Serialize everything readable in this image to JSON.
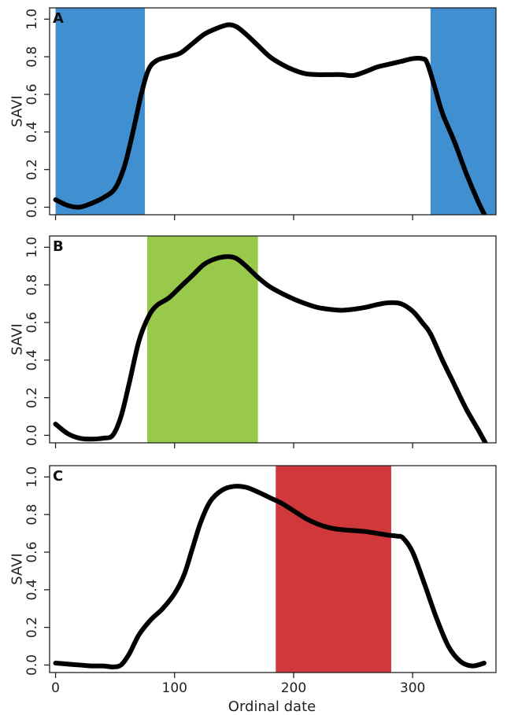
{
  "chart_data": [
    {
      "type": "line",
      "panel_label": "A",
      "ylabel": "SAVI",
      "xlim": [
        -5,
        370
      ],
      "ylim": [
        -0.04,
        1.06
      ],
      "yticks": [
        "0.0",
        "0.2",
        "0.4",
        "0.6",
        "0.8",
        "1.0"
      ],
      "shaded_ranges": [
        {
          "start": 0,
          "end": 75,
          "color": "#3f8fd1"
        },
        {
          "start": 315,
          "end": 370,
          "color": "#3f8fd1"
        }
      ],
      "series": [
        {
          "color": "#000000",
          "x": [
            0,
            10,
            20,
            30,
            40,
            50,
            58,
            65,
            72,
            78,
            85,
            95,
            105,
            115,
            125,
            135,
            145,
            152,
            160,
            170,
            180,
            190,
            200,
            210,
            220,
            230,
            240,
            250,
            260,
            270,
            280,
            290,
            300,
            308,
            312,
            318,
            325,
            335,
            345,
            355,
            362
          ],
          "y": [
            0.04,
            0.01,
            0.0,
            0.02,
            0.05,
            0.1,
            0.22,
            0.4,
            0.6,
            0.73,
            0.78,
            0.8,
            0.82,
            0.87,
            0.92,
            0.95,
            0.97,
            0.96,
            0.92,
            0.86,
            0.8,
            0.76,
            0.73,
            0.71,
            0.705,
            0.705,
            0.705,
            0.7,
            0.72,
            0.745,
            0.76,
            0.775,
            0.79,
            0.79,
            0.77,
            0.65,
            0.5,
            0.35,
            0.18,
            0.03,
            -0.06
          ]
        }
      ]
    },
    {
      "type": "line",
      "panel_label": "B",
      "ylabel": "SAVI",
      "xlim": [
        -5,
        370
      ],
      "ylim": [
        -0.04,
        1.06
      ],
      "yticks": [
        "0.0",
        "0.2",
        "0.4",
        "0.6",
        "0.8",
        "1.0"
      ],
      "shaded_ranges": [
        {
          "start": 77,
          "end": 170,
          "color": "#98c94b"
        }
      ],
      "series": [
        {
          "color": "#000000",
          "x": [
            0,
            10,
            20,
            30,
            40,
            48,
            55,
            62,
            70,
            78,
            85,
            95,
            105,
            115,
            125,
            135,
            145,
            152,
            160,
            170,
            180,
            190,
            200,
            210,
            220,
            230,
            240,
            250,
            260,
            270,
            280,
            290,
            300,
            308,
            315,
            325,
            335,
            345,
            355,
            362
          ],
          "y": [
            0.06,
            0.01,
            -0.015,
            -0.02,
            -0.015,
            0.0,
            0.1,
            0.28,
            0.5,
            0.63,
            0.69,
            0.73,
            0.79,
            0.85,
            0.91,
            0.94,
            0.95,
            0.94,
            0.9,
            0.84,
            0.79,
            0.755,
            0.725,
            0.7,
            0.68,
            0.67,
            0.665,
            0.67,
            0.68,
            0.695,
            0.705,
            0.7,
            0.66,
            0.6,
            0.54,
            0.4,
            0.27,
            0.14,
            0.03,
            -0.05
          ]
        }
      ]
    },
    {
      "type": "line",
      "panel_label": "C",
      "xlabel": "Ordinal date",
      "ylabel": "SAVI",
      "xlim": [
        -5,
        370
      ],
      "ylim": [
        -0.04,
        1.06
      ],
      "xticks": [
        "0",
        "100",
        "200",
        "300"
      ],
      "yticks": [
        "0.0",
        "0.2",
        "0.4",
        "0.6",
        "0.8",
        "1.0"
      ],
      "shaded_ranges": [
        {
          "start": 185,
          "end": 282,
          "color": "#d0383b"
        }
      ],
      "series": [
        {
          "color": "#000000",
          "x": [
            0,
            10,
            20,
            30,
            40,
            48,
            55,
            62,
            70,
            80,
            90,
            100,
            108,
            115,
            122,
            130,
            140,
            150,
            160,
            170,
            180,
            190,
            200,
            210,
            220,
            230,
            240,
            250,
            260,
            270,
            280,
            287,
            292,
            300,
            310,
            320,
            330,
            340,
            350,
            360
          ],
          "y": [
            0.01,
            0.005,
            0.0,
            -0.005,
            -0.005,
            -0.01,
            0.0,
            0.06,
            0.16,
            0.24,
            0.3,
            0.38,
            0.48,
            0.62,
            0.76,
            0.87,
            0.93,
            0.95,
            0.945,
            0.92,
            0.89,
            0.86,
            0.82,
            0.78,
            0.75,
            0.73,
            0.72,
            0.715,
            0.71,
            0.7,
            0.69,
            0.685,
            0.675,
            0.6,
            0.43,
            0.25,
            0.1,
            0.02,
            -0.005,
            0.01
          ]
        }
      ]
    }
  ]
}
